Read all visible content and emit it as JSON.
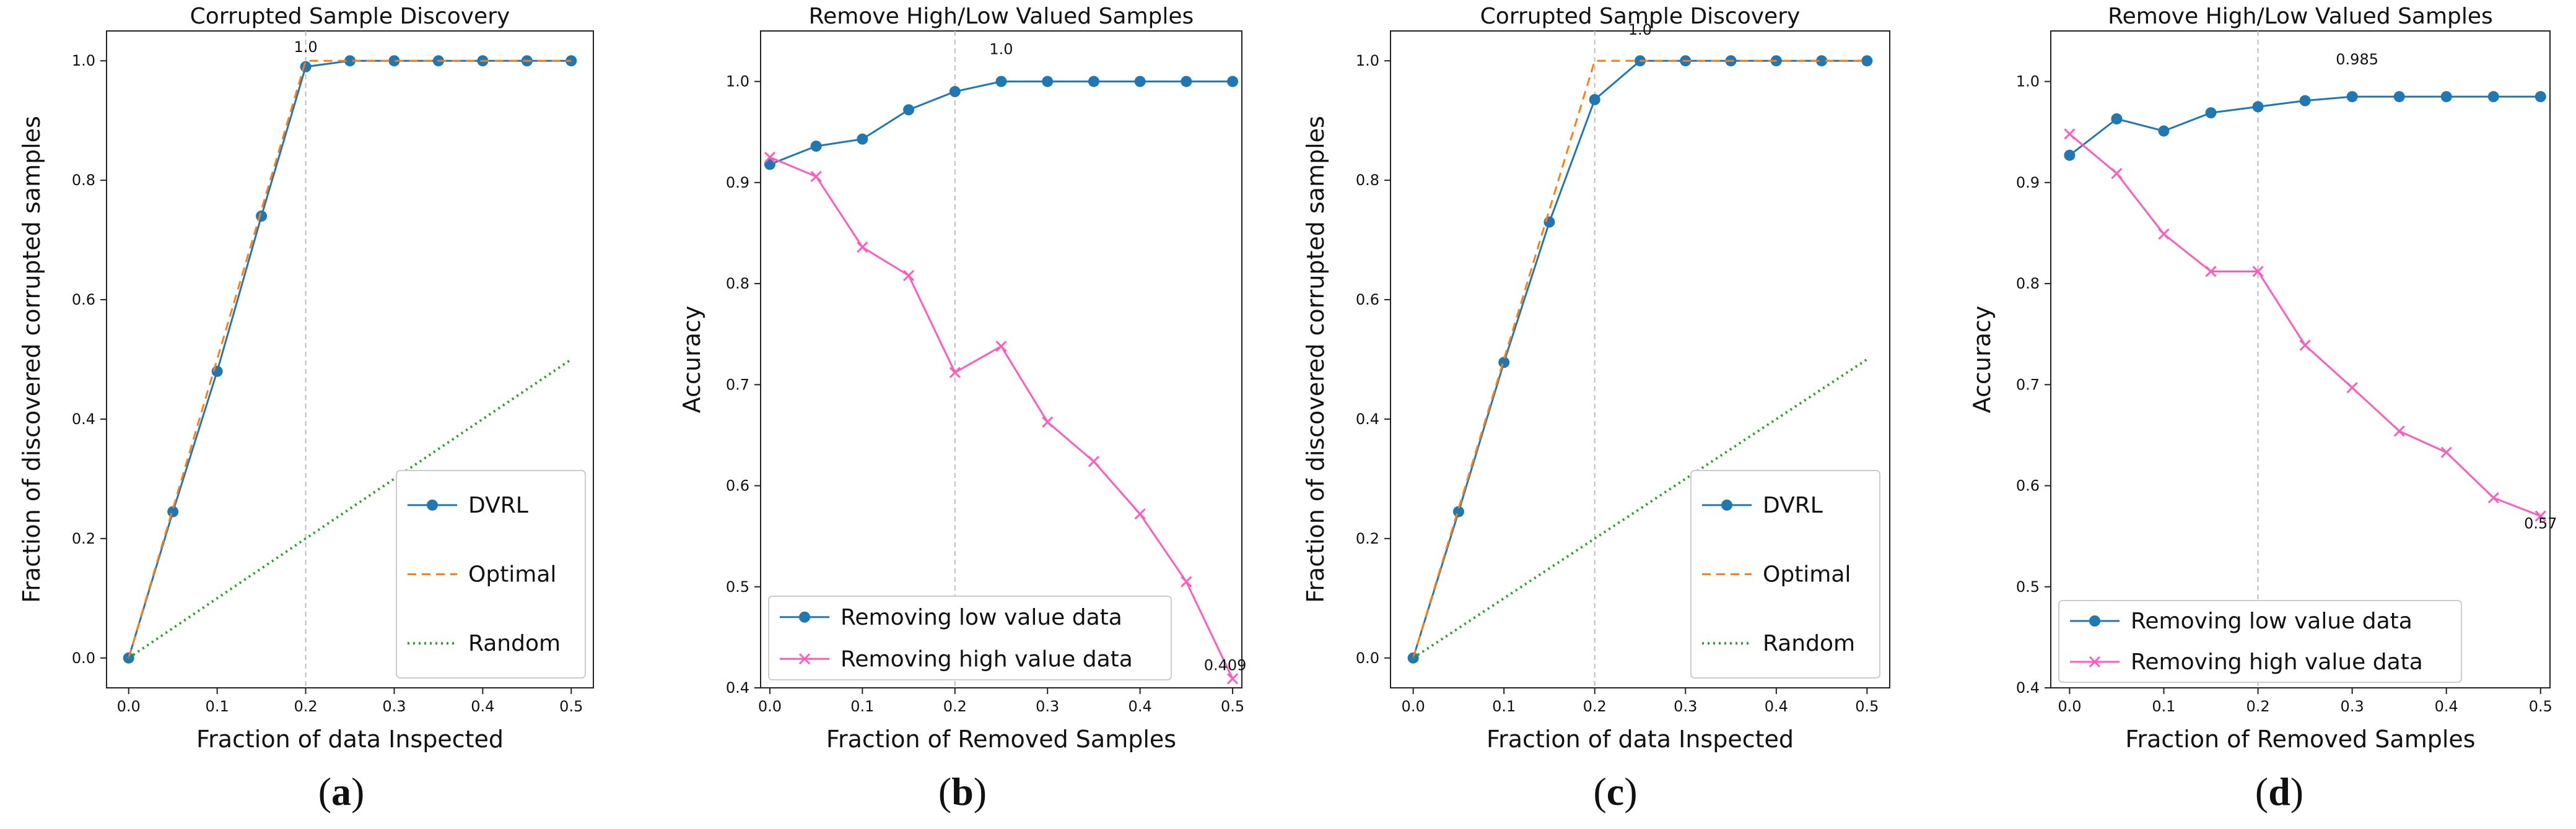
{
  "chart_data": [
    {
      "id": "a",
      "panel_label": "a",
      "type": "line",
      "title": "Corrupted Sample Discovery",
      "xlabel": "Fraction of data Inspected",
      "ylabel": "Fraction of discovered corrupted samples",
      "xlim": [
        -0.025,
        0.525
      ],
      "ylim": [
        -0.05,
        1.05
      ],
      "xticks": [
        "0.0",
        "0.1",
        "0.2",
        "0.3",
        "0.4",
        "0.5"
      ],
      "yticks": [
        "0.0",
        "0.2",
        "0.4",
        "0.6",
        "0.8",
        "1.0"
      ],
      "vline_x": 0.2,
      "legend_position": "lower-right",
      "series": [
        {
          "name": "DVRL",
          "style": "solid-dot",
          "color": "#1f77b4",
          "x": [
            0.0,
            0.05,
            0.1,
            0.15,
            0.2,
            0.25,
            0.3,
            0.35,
            0.4,
            0.45,
            0.5
          ],
          "y": [
            0.0,
            0.245,
            0.48,
            0.74,
            0.99,
            1.0,
            1.0,
            1.0,
            1.0,
            1.0,
            1.0
          ]
        },
        {
          "name": "Optimal",
          "style": "dashed",
          "color": "#ff7f0e",
          "x": [
            0.0,
            0.2,
            0.5
          ],
          "y": [
            0.0,
            1.0,
            1.0
          ]
        },
        {
          "name": "Random",
          "style": "dotted",
          "color": "#2ca02c",
          "x": [
            0.0,
            0.5
          ],
          "y": [
            0.0,
            0.5
          ]
        }
      ],
      "annotations": [
        {
          "text": "1.0",
          "x": 0.2,
          "y": 1.0
        }
      ]
    },
    {
      "id": "b",
      "panel_label": "b",
      "type": "line",
      "title": "Remove High/Low Valued Samples",
      "xlabel": "Fraction of Removed Samples",
      "ylabel": "Accuracy",
      "xlim": [
        -0.01,
        0.51
      ],
      "ylim": [
        0.4,
        1.05
      ],
      "xticks": [
        "0.0",
        "0.1",
        "0.2",
        "0.3",
        "0.4",
        "0.5"
      ],
      "yticks": [
        "0.4",
        "0.5",
        "0.6",
        "0.7",
        "0.8",
        "0.9",
        "1.0"
      ],
      "vline_x": 0.2,
      "legend_position": "lower-left",
      "series": [
        {
          "name": "Removing low value data",
          "style": "solid-dot",
          "color": "#1f77b4",
          "x": [
            0.0,
            0.05,
            0.1,
            0.15,
            0.2,
            0.25,
            0.3,
            0.35,
            0.4,
            0.45,
            0.5
          ],
          "y": [
            0.918,
            0.936,
            0.943,
            0.972,
            0.99,
            1.0,
            1.0,
            1.0,
            1.0,
            1.0,
            1.0
          ]
        },
        {
          "name": "Removing high value data",
          "style": "solid-x",
          "color": "#ff5bbd",
          "x": [
            0.0,
            0.05,
            0.1,
            0.15,
            0.2,
            0.25,
            0.3,
            0.35,
            0.4,
            0.45,
            0.5
          ],
          "y": [
            0.925,
            0.906,
            0.836,
            0.808,
            0.712,
            0.738,
            0.663,
            0.624,
            0.572,
            0.505,
            0.409
          ]
        }
      ],
      "annotations": [
        {
          "text": "1.0",
          "x": 0.25,
          "y": 1.0
        },
        {
          "text": "0.409",
          "x": 0.5,
          "y": 0.409
        }
      ]
    },
    {
      "id": "c",
      "panel_label": "c",
      "type": "line",
      "title": "Corrupted Sample Discovery",
      "xlabel": "Fraction of data Inspected",
      "ylabel": "Fraction of discovered corrupted samples",
      "xlim": [
        -0.025,
        0.525
      ],
      "ylim": [
        -0.05,
        1.05
      ],
      "xticks": [
        "0.0",
        "0.1",
        "0.2",
        "0.3",
        "0.4",
        "0.5"
      ],
      "yticks": [
        "0.0",
        "0.2",
        "0.4",
        "0.6",
        "0.8",
        "1.0"
      ],
      "vline_x": 0.2,
      "legend_position": "lower-right",
      "series": [
        {
          "name": "DVRL",
          "style": "solid-dot",
          "color": "#1f77b4",
          "x": [
            0.0,
            0.05,
            0.1,
            0.15,
            0.2,
            0.25,
            0.3,
            0.35,
            0.4,
            0.45,
            0.5
          ],
          "y": [
            0.0,
            0.245,
            0.495,
            0.73,
            0.935,
            1.0,
            1.0,
            1.0,
            1.0,
            1.0,
            1.0
          ]
        },
        {
          "name": "Optimal",
          "style": "dashed",
          "color": "#ff7f0e",
          "x": [
            0.0,
            0.2,
            0.5
          ],
          "y": [
            0.0,
            1.0,
            1.0
          ]
        },
        {
          "name": "Random",
          "style": "dotted",
          "color": "#2ca02c",
          "x": [
            0.0,
            0.5
          ],
          "y": [
            0.0,
            0.5
          ]
        }
      ],
      "annotations": [
        {
          "text": "1.0",
          "x": 0.25,
          "y": 1.0
        }
      ]
    },
    {
      "id": "d",
      "panel_label": "d",
      "type": "line",
      "title": "Remove High/Low Valued Samples",
      "xlabel": "Fraction of Removed Samples",
      "ylabel": "Accuracy",
      "xlim": [
        -0.02,
        0.51
      ],
      "ylim": [
        0.4,
        1.05
      ],
      "xticks": [
        "0.0",
        "0.1",
        "0.2",
        "0.3",
        "0.4",
        "0.5"
      ],
      "yticks": [
        "0.4",
        "0.5",
        "0.6",
        "0.7",
        "0.8",
        "0.9",
        "1.0"
      ],
      "vline_x": 0.2,
      "legend_position": "lower-left",
      "series": [
        {
          "name": "Removing low value data",
          "style": "solid-dot",
          "color": "#1f77b4",
          "x": [
            0.0,
            0.05,
            0.1,
            0.15,
            0.2,
            0.25,
            0.3,
            0.35,
            0.4,
            0.45,
            0.5
          ],
          "y": [
            0.927,
            0.963,
            0.951,
            0.969,
            0.975,
            0.981,
            0.985,
            0.985,
            0.985,
            0.985,
            0.985
          ]
        },
        {
          "name": "Removing high value data",
          "style": "solid-x",
          "color": "#ff5bbd",
          "x": [
            0.0,
            0.05,
            0.1,
            0.15,
            0.2,
            0.25,
            0.3,
            0.35,
            0.4,
            0.45,
            0.5
          ],
          "y": [
            0.948,
            0.909,
            0.849,
            0.812,
            0.812,
            0.739,
            0.697,
            0.654,
            0.633,
            0.588,
            0.57
          ]
        }
      ],
      "annotations": [
        {
          "text": "0.985",
          "x": 0.3,
          "y": 0.985
        },
        {
          "text": "0.57",
          "x": 0.5,
          "y": 0.57
        }
      ]
    }
  ]
}
